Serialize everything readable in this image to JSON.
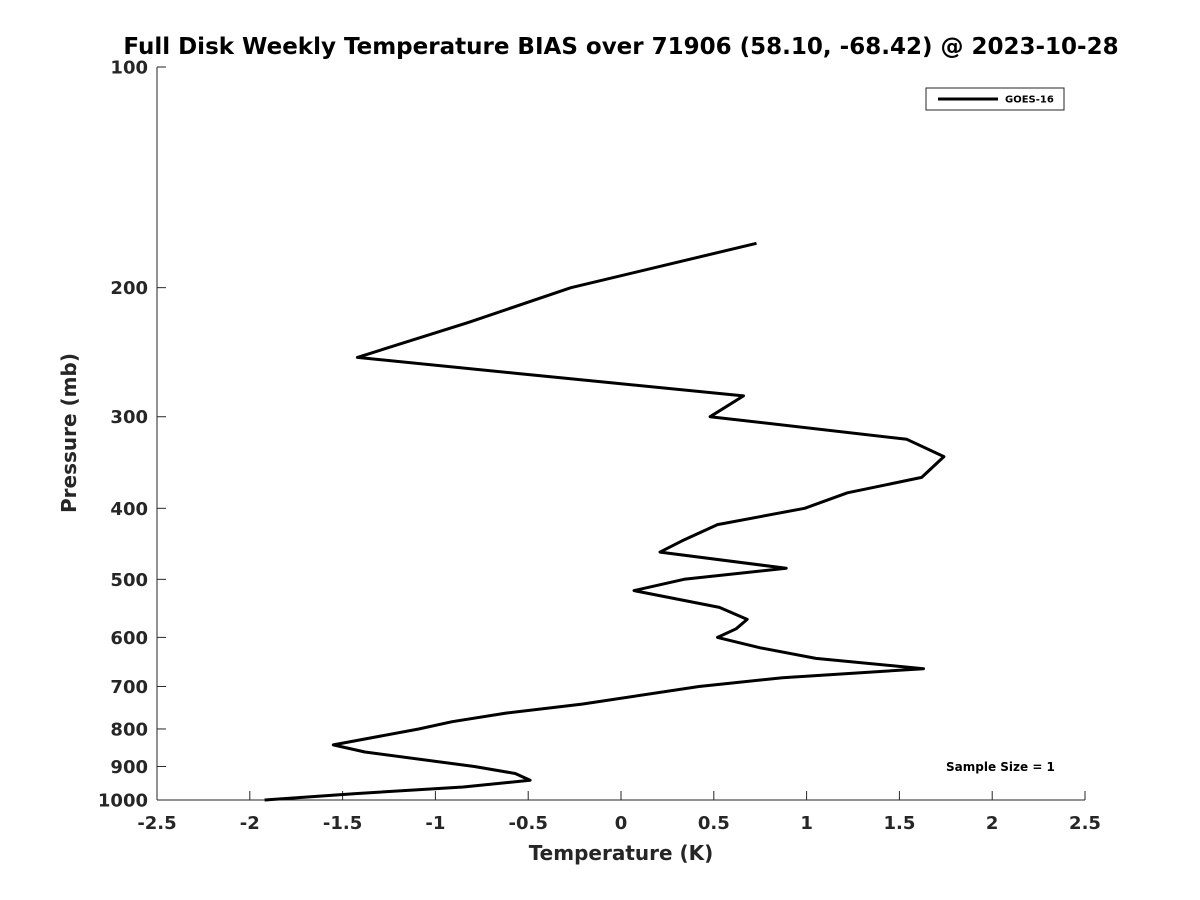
{
  "chart_data": {
    "type": "line",
    "title": "Full Disk Weekly Temperature BIAS over 71906 (58.10, -68.42) @ 2023-10-28",
    "xlabel": "Temperature (K)",
    "ylabel": "Pressure (mb)",
    "xlim": [
      -2.5,
      2.5
    ],
    "ylim": [
      1000,
      100
    ],
    "yscale": "log",
    "y_reversed": true,
    "xticks": [
      -2.5,
      -2,
      -1.5,
      -1,
      -0.5,
      0,
      0.5,
      1,
      1.5,
      2,
      2.5
    ],
    "xtick_labels": [
      "-2.5",
      "-2",
      "-1.5",
      "-1",
      "-0.5",
      "0",
      "0.5",
      "1",
      "1.5",
      "2",
      "2.5"
    ],
    "yticks": [
      100,
      200,
      300,
      400,
      500,
      600,
      700,
      800,
      900,
      1000
    ],
    "ytick_labels": [
      "100",
      "200",
      "300",
      "400",
      "500",
      "600",
      "700",
      "800",
      "900",
      "1000"
    ],
    "grid": false,
    "legend_position": "top-right",
    "annotation": "Sample Size = 1",
    "series": [
      {
        "name": "GOES-16",
        "color": "#000000",
        "points": [
          {
            "x": 0.73,
            "p": 174
          },
          {
            "x": -0.27,
            "p": 200
          },
          {
            "x": -0.82,
            "p": 223
          },
          {
            "x": -1.42,
            "p": 249
          },
          {
            "x": -0.55,
            "p": 262
          },
          {
            "x": 0.66,
            "p": 281
          },
          {
            "x": 0.48,
            "p": 300
          },
          {
            "x": 1.54,
            "p": 322
          },
          {
            "x": 1.74,
            "p": 340
          },
          {
            "x": 1.62,
            "p": 363
          },
          {
            "x": 1.22,
            "p": 381
          },
          {
            "x": 0.99,
            "p": 400
          },
          {
            "x": 0.52,
            "p": 421
          },
          {
            "x": 0.33,
            "p": 443
          },
          {
            "x": 0.21,
            "p": 459
          },
          {
            "x": 0.89,
            "p": 483
          },
          {
            "x": 0.34,
            "p": 500
          },
          {
            "x": 0.07,
            "p": 518
          },
          {
            "x": 0.53,
            "p": 546
          },
          {
            "x": 0.68,
            "p": 567
          },
          {
            "x": 0.62,
            "p": 584
          },
          {
            "x": 0.52,
            "p": 600
          },
          {
            "x": 0.75,
            "p": 620
          },
          {
            "x": 1.05,
            "p": 641
          },
          {
            "x": 1.63,
            "p": 662
          },
          {
            "x": 0.87,
            "p": 681
          },
          {
            "x": 0.42,
            "p": 700
          },
          {
            "x": -0.21,
            "p": 740
          },
          {
            "x": -0.62,
            "p": 761
          },
          {
            "x": -0.91,
            "p": 782
          },
          {
            "x": -1.09,
            "p": 800
          },
          {
            "x": -1.55,
            "p": 841
          },
          {
            "x": -1.38,
            "p": 860
          },
          {
            "x": -0.79,
            "p": 900
          },
          {
            "x": -0.57,
            "p": 920
          },
          {
            "x": -0.49,
            "p": 940
          },
          {
            "x": -0.85,
            "p": 960
          },
          {
            "x": -1.43,
            "p": 980
          },
          {
            "x": -1.92,
            "p": 1000
          }
        ]
      }
    ]
  }
}
